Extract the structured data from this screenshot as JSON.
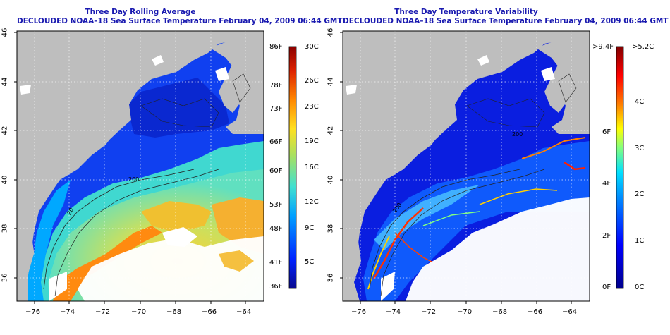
{
  "left_panel": {
    "title_line1": "Three Day Rolling Average",
    "title_line2": "DECLOUDED NOAA–18 Sea Surface Temperature February 04, 2009 06:44 GMT",
    "x_ticks": [
      "−76",
      "−74",
      "−72",
      "−70",
      "−68",
      "−66",
      "−64"
    ],
    "y_ticks": [
      "46",
      "44",
      "42",
      "40",
      "38",
      "36"
    ],
    "colorbar": {
      "left_labels": [
        "86F",
        "78F",
        "73F",
        "66F",
        "60F",
        "53F",
        "48F",
        "41F",
        "36F"
      ],
      "right_labels": [
        "30C",
        "26C",
        "23C",
        "19C",
        "16C",
        "12C",
        "9C",
        "5C"
      ]
    },
    "contour_labels": [
      "200",
      "20"
    ]
  },
  "right_panel": {
    "title_line1": "Three Day Temperature Variability",
    "title_line2": "DECLOUDED NOAA–18 Sea Surface Temperature February 04, 2009 06:44 GMT",
    "x_ticks": [
      "−76",
      "−74",
      "−72",
      "−70",
      "−68",
      "−66",
      "−64"
    ],
    "y_ticks": [
      "46",
      "44",
      "42",
      "40",
      "38",
      "36"
    ],
    "colorbar": {
      "left_labels": [
        ">9.4F",
        "6F",
        "4F",
        "2F",
        "0F"
      ],
      "right_labels": [
        ">5.2C",
        "4C",
        "3C",
        "2C",
        "1C",
        "0C"
      ]
    },
    "contour_labels": [
      "200",
      "200"
    ]
  },
  "colors": {
    "title": "#1a1ab0",
    "land": "#bebebe",
    "cloud": "#ffffff",
    "sst_scale": [
      "#0a0a8c",
      "#0022ff",
      "#00a0ff",
      "#40e0d0",
      "#a8e060",
      "#ffe020",
      "#ff8800",
      "#dd2200",
      "#8b0000"
    ],
    "variability_scale": [
      "#00008b",
      "#0000ff",
      "#0080ff",
      "#00e0ff",
      "#80ff80",
      "#ffff00",
      "#ff8000",
      "#ff0000",
      "#800000"
    ]
  }
}
